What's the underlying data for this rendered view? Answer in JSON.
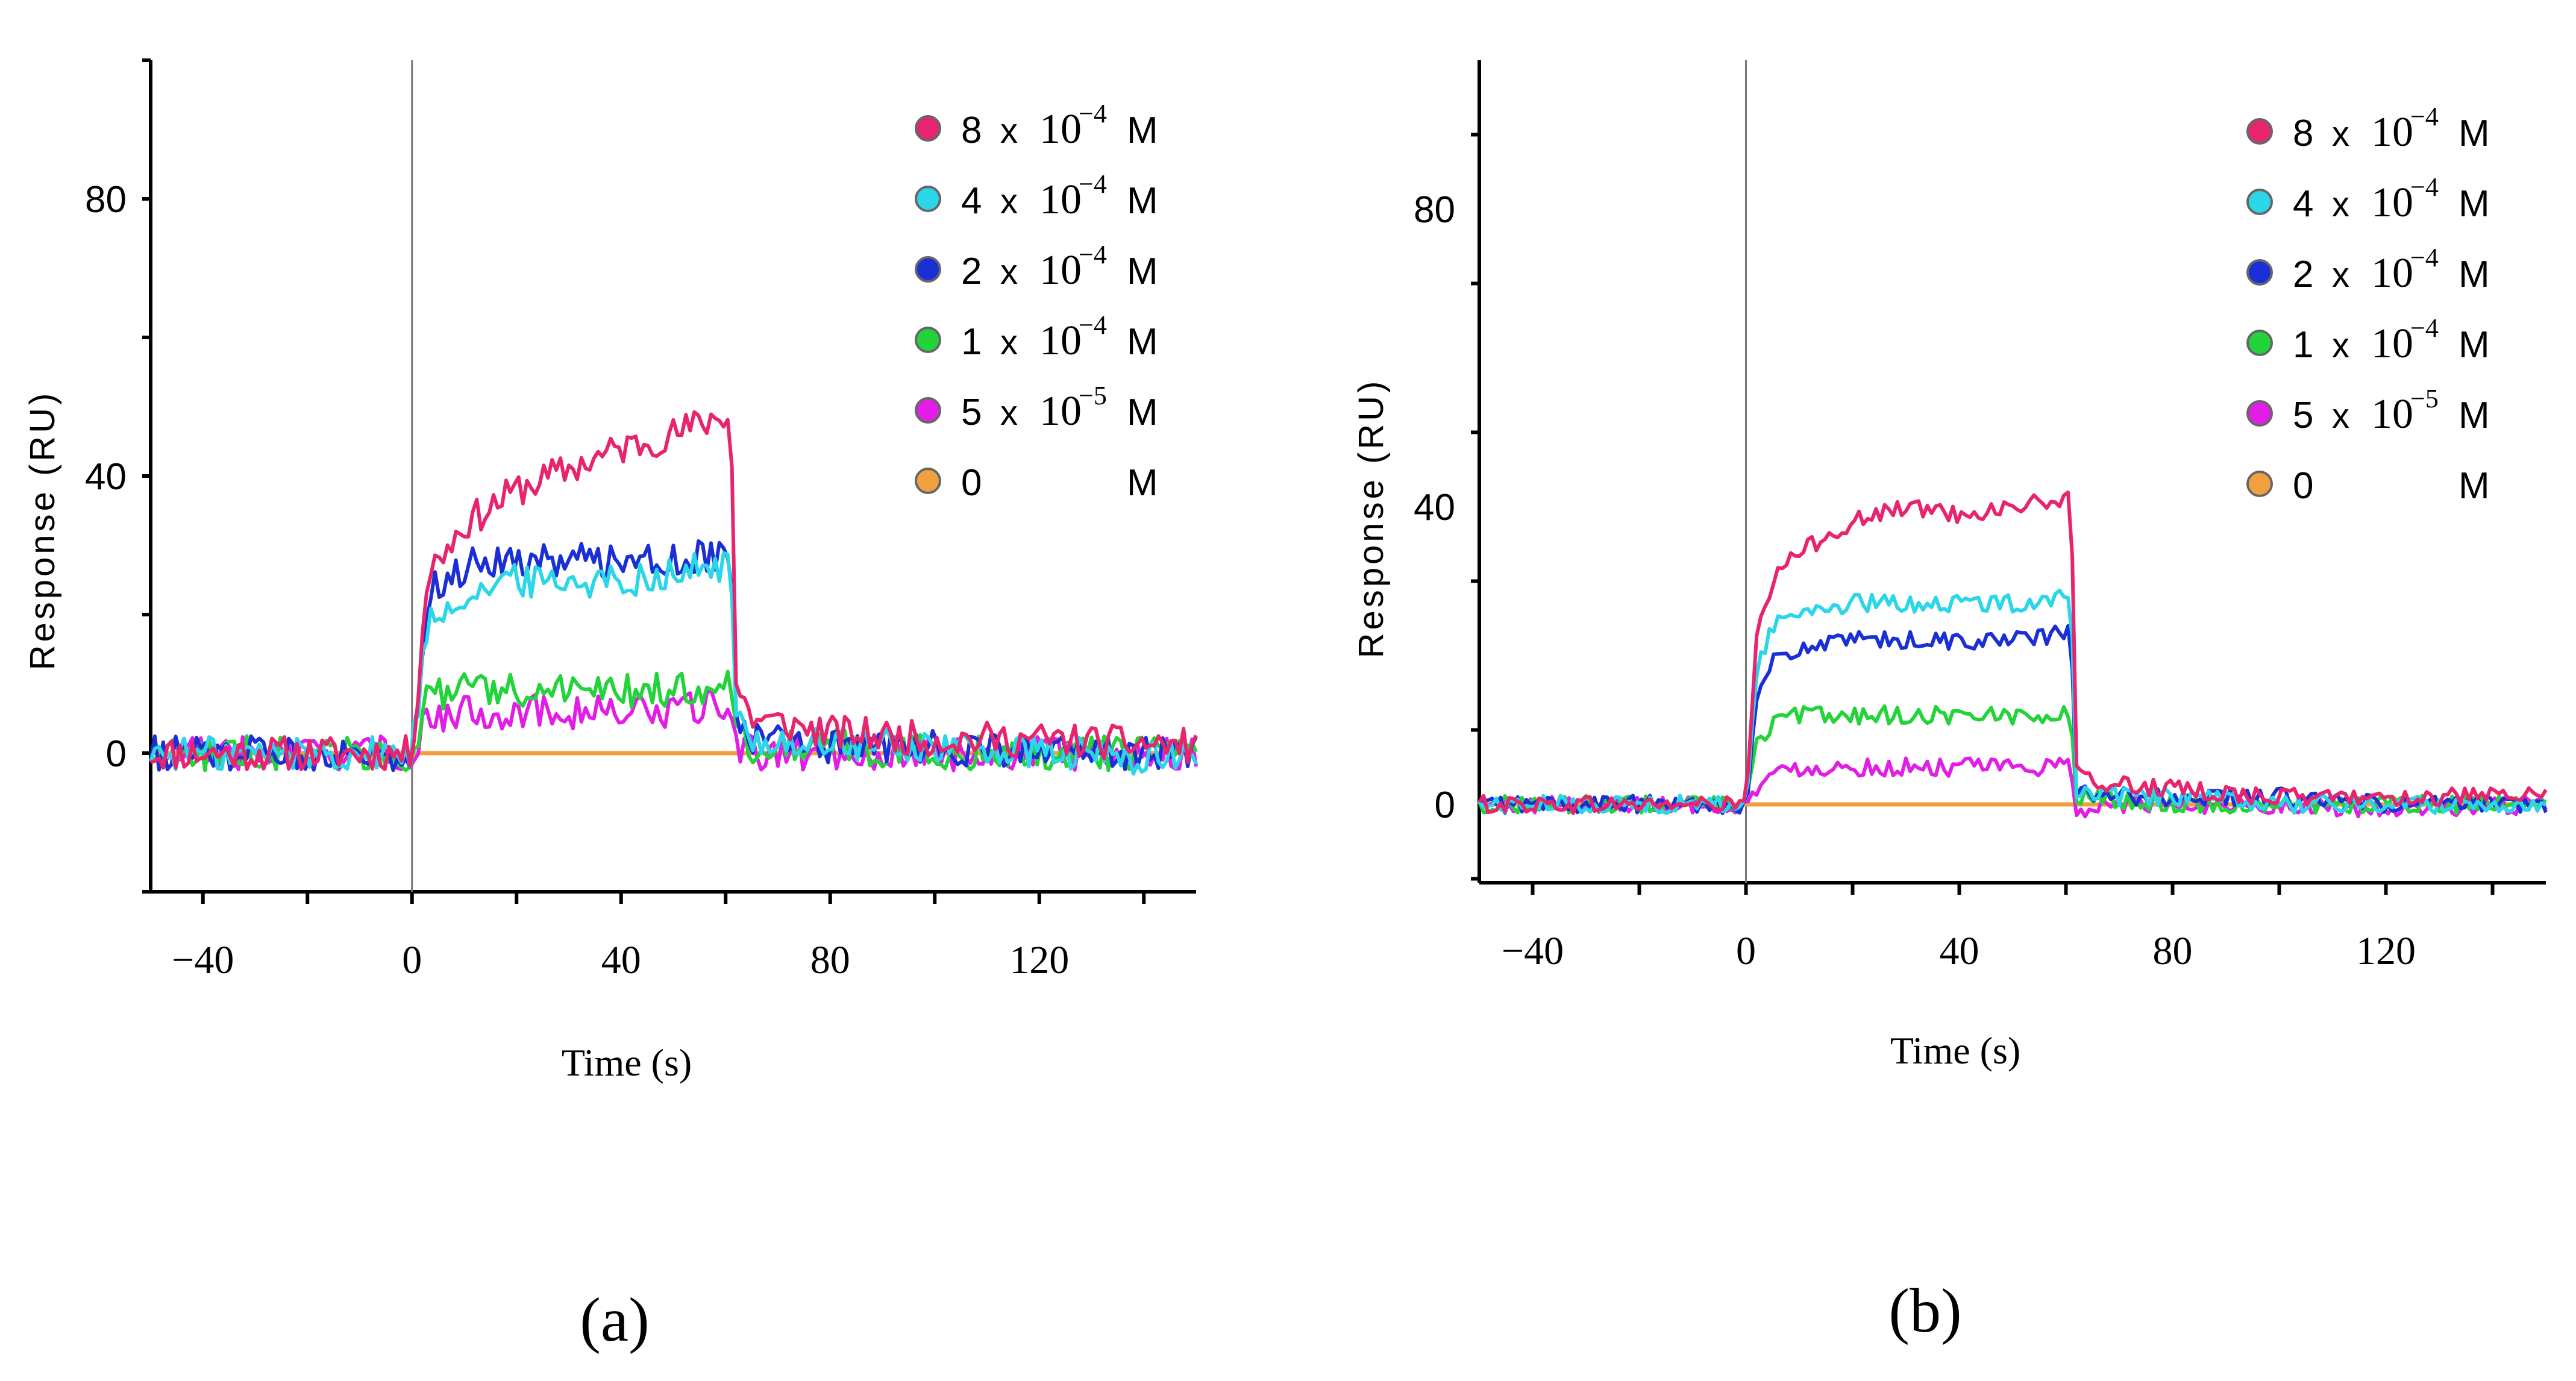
{
  "chart_data": [
    {
      "type": "line",
      "panel_label": "(a)",
      "xlabel": "Time  (s)",
      "ylabel": "Response  (RU)",
      "xlim": [
        -50,
        150
      ],
      "ylim": [
        -20,
        100
      ],
      "xticks": [
        -40,
        0,
        40,
        80,
        120
      ],
      "xtick_labels": [
        "−40",
        "0",
        "40",
        "80",
        "120"
      ],
      "yticks": [
        0,
        40,
        80
      ],
      "ytick_labels": [
        "0",
        "40",
        "80"
      ],
      "injection_start": 0,
      "injection_end": 60,
      "grid": false,
      "legend_position": "top-right",
      "noise": 2.5,
      "series": [
        {
          "name": "8 x 10⁻⁴ M",
          "coef": "8",
          "mant": "10",
          "exp": "−4",
          "unit": "M",
          "color": "#e8246e",
          "x": [
            -50,
            0,
            3,
            10,
            20,
            30,
            40,
            50,
            60,
            61,
            62,
            65,
            80,
            100,
            120,
            150
          ],
          "y": [
            0,
            0,
            26,
            33,
            38,
            41,
            44,
            46,
            49,
            49,
            10,
            5,
            3,
            2,
            2,
            1
          ]
        },
        {
          "name": "4 x 10⁻⁴ M",
          "coef": "4",
          "mant": "10",
          "exp": "−4",
          "unit": "M",
          "color": "#2ad6e8",
          "x": [
            -50,
            0,
            3,
            10,
            20,
            30,
            40,
            50,
            60,
            61,
            62,
            65,
            80,
            100,
            120,
            150
          ],
          "y": [
            0,
            0,
            19,
            23,
            25,
            25,
            25,
            26,
            27,
            27,
            5,
            2,
            1,
            1,
            0,
            -1
          ]
        },
        {
          "name": "2 x 10⁻⁴ M",
          "coef": "2",
          "mant": "10",
          "exp": "−4",
          "unit": "M",
          "color": "#1a2fd6",
          "x": [
            -50,
            0,
            3,
            10,
            20,
            30,
            40,
            50,
            60,
            61,
            62,
            65,
            80,
            100,
            120,
            150
          ],
          "y": [
            0,
            0,
            23,
            27,
            28,
            28,
            28,
            28,
            29,
            29,
            5,
            2,
            1,
            1,
            0,
            0
          ]
        },
        {
          "name": "1 x 10⁻⁴ M",
          "coef": "1",
          "mant": "10",
          "exp": "−4",
          "unit": "M",
          "color": "#22d43a",
          "x": [
            -50,
            0,
            3,
            10,
            20,
            30,
            40,
            50,
            60,
            61,
            62,
            65,
            80,
            100,
            120,
            150
          ],
          "y": [
            0,
            0,
            8,
            9,
            9,
            9,
            9,
            9,
            10,
            10,
            3,
            1,
            1,
            0,
            0,
            0
          ]
        },
        {
          "name": "5 x 10⁻⁵ M",
          "coef": "5",
          "mant": "10",
          "exp": "−5",
          "unit": "M",
          "color": "#e21ee6",
          "x": [
            -50,
            0,
            3,
            10,
            20,
            30,
            40,
            50,
            60,
            61,
            62,
            65,
            80,
            100,
            120,
            150
          ],
          "y": [
            0,
            0,
            5,
            6,
            6,
            6,
            6,
            6,
            7,
            7,
            1,
            0,
            0,
            0,
            0,
            0
          ]
        },
        {
          "name": "0 M",
          "coef": "0",
          "mant": "",
          "exp": "",
          "unit": "M",
          "color": "#f0a040",
          "x": [
            -50,
            150
          ],
          "y": [
            0,
            0
          ]
        }
      ]
    },
    {
      "type": "line",
      "panel_label": "(b)",
      "xlabel": "Time  (s)",
      "ylabel": "Response  (RU)",
      "xlim": [
        -50,
        150
      ],
      "ylim": [
        -10,
        100
      ],
      "xticks": [
        -40,
        0,
        40,
        80,
        120
      ],
      "xtick_labels": [
        "−40",
        "0",
        "40",
        "80",
        "120"
      ],
      "yticks": [
        0,
        40,
        80
      ],
      "ytick_labels": [
        "0",
        "40",
        "80"
      ],
      "injection_start": 0,
      "injection_end": 60,
      "grid": false,
      "legend_position": "top-right",
      "noise": 1.2,
      "series": [
        {
          "name": "8 x 10⁻⁴ M",
          "coef": "8",
          "mant": "10",
          "exp": "−4",
          "unit": "M",
          "color": "#e8246e",
          "x": [
            -50,
            0,
            2,
            5,
            10,
            20,
            30,
            40,
            50,
            60,
            61,
            62,
            65,
            80,
            100,
            120,
            150
          ],
          "y": [
            0,
            0,
            22,
            30,
            34,
            38,
            40,
            39,
            40,
            41,
            41,
            4,
            3,
            2,
            1,
            1,
            1
          ]
        },
        {
          "name": "4 x 10⁻⁴ M",
          "coef": "4",
          "mant": "10",
          "exp": "−4",
          "unit": "M",
          "color": "#2ad6e8",
          "x": [
            -50,
            0,
            2,
            5,
            10,
            20,
            30,
            40,
            50,
            60,
            61,
            62,
            65,
            80,
            100,
            120,
            150
          ],
          "y": [
            0,
            0,
            18,
            24,
            26,
            27,
            27,
            27,
            27,
            28,
            28,
            2,
            1,
            1,
            0,
            0,
            0
          ]
        },
        {
          "name": "2 x 10⁻⁴ M",
          "coef": "2",
          "mant": "10",
          "exp": "−4",
          "unit": "M",
          "color": "#1a2fd6",
          "x": [
            -50,
            0,
            2,
            5,
            10,
            20,
            30,
            40,
            50,
            60,
            61,
            62,
            65,
            80,
            100,
            120,
            150
          ],
          "y": [
            0,
            0,
            14,
            19,
            21,
            22,
            22,
            22,
            22,
            23,
            23,
            2,
            1,
            1,
            1,
            0,
            0
          ]
        },
        {
          "name": "1 x 10⁻⁴ M",
          "coef": "1",
          "mant": "10",
          "exp": "−4",
          "unit": "M",
          "color": "#22d43a",
          "x": [
            -50,
            0,
            2,
            5,
            10,
            20,
            30,
            40,
            50,
            60,
            61,
            62,
            65,
            80,
            100,
            120,
            150
          ],
          "y": [
            0,
            0,
            8,
            11,
            12,
            12,
            12,
            12,
            12,
            12,
            12,
            1,
            1,
            0,
            0,
            0,
            0
          ]
        },
        {
          "name": "5 x 10⁻⁵ M",
          "coef": "5",
          "mant": "10",
          "exp": "−5",
          "unit": "M",
          "color": "#e21ee6",
          "x": [
            -50,
            0,
            2,
            5,
            10,
            20,
            30,
            40,
            50,
            60,
            61,
            62,
            65,
            80,
            100,
            120,
            150
          ],
          "y": [
            0,
            0,
            2,
            4,
            5,
            5,
            5,
            5,
            5,
            5,
            5,
            -1,
            0,
            0,
            0,
            -1,
            0
          ]
        },
        {
          "name": "0 M",
          "coef": "0",
          "mant": "",
          "exp": "",
          "unit": "M",
          "color": "#f0a040",
          "x": [
            -50,
            150
          ],
          "y": [
            0,
            0
          ]
        }
      ]
    }
  ]
}
